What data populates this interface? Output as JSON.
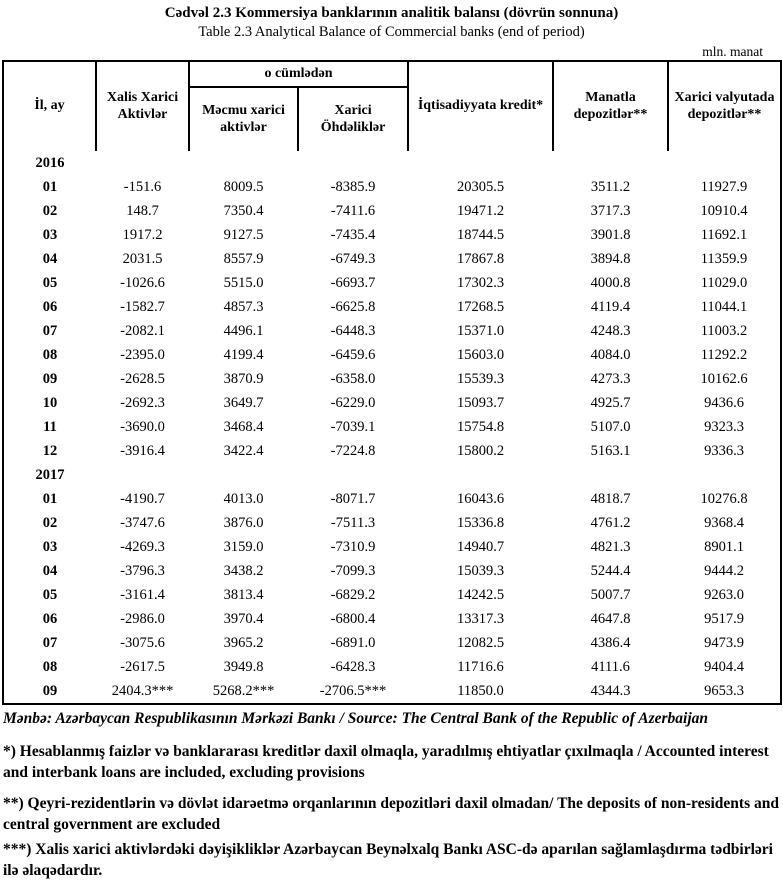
{
  "title_az": "Cədvəl  2.3  Kommersiya banklarının analitik balansı (dövrün sonnuna)",
  "title_en": "Table  2.3  Analytical Balance of Commercial banks (end of period)",
  "unit_label": "mln. manat",
  "table": {
    "headers": {
      "col_year_month": "İl, ay",
      "col_net_foreign_assets": "Xalis Xarici Aktivlər",
      "group_of_which": "o cümlədən",
      "col_gross_foreign_assets": "Məcmu xarici aktivlər",
      "col_foreign_liabilities": "Xarici Öhdəliklər",
      "col_credit_to_economy": "İqtisadiyyata kredit*",
      "col_manat_deposits": "Manatla depozitlər**",
      "col_fx_deposits": "Xarici valyutada depozitlər**"
    },
    "groups": [
      {
        "year": "2016",
        "rows": [
          [
            "01",
            "-151.6",
            "8009.5",
            "-8385.9",
            "20305.5",
            "3511.2",
            "11927.9"
          ],
          [
            "02",
            "148.7",
            "7350.4",
            "-7411.6",
            "19471.2",
            "3717.3",
            "10910.4"
          ],
          [
            "03",
            "1917.2",
            "9127.5",
            "-7435.4",
            "18744.5",
            "3901.8",
            "11692.1"
          ],
          [
            "04",
            "2031.5",
            "8557.9",
            "-6749.3",
            "17867.8",
            "3894.8",
            "11359.9"
          ],
          [
            "05",
            "-1026.6",
            "5515.0",
            "-6693.7",
            "17302.3",
            "4000.8",
            "11029.0"
          ],
          [
            "06",
            "-1582.7",
            "4857.3",
            "-6625.8",
            "17268.5",
            "4119.4",
            "11044.1"
          ],
          [
            "07",
            "-2082.1",
            "4496.1",
            "-6448.3",
            "15371.0",
            "4248.3",
            "11003.2"
          ],
          [
            "08",
            "-2395.0",
            "4199.4",
            "-6459.6",
            "15603.0",
            "4084.0",
            "11292.2"
          ],
          [
            "09",
            "-2628.5",
            "3870.9",
            "-6358.0",
            "15539.3",
            "4273.3",
            "10162.6"
          ],
          [
            "10",
            "-2692.3",
            "3649.7",
            "-6229.0",
            "15093.7",
            "4925.7",
            "9436.6"
          ],
          [
            "11",
            "-3690.0",
            "3468.4",
            "-7039.1",
            "15754.8",
            "5107.0",
            "9323.3"
          ],
          [
            "12",
            "-3916.4",
            "3422.4",
            "-7224.8",
            "15800.2",
            "5163.1",
            "9336.3"
          ]
        ]
      },
      {
        "year": "2017",
        "rows": [
          [
            "01",
            "-4190.7",
            "4013.0",
            "-8071.7",
            "16043.6",
            "4818.7",
            "10276.8"
          ],
          [
            "02",
            "-3747.6",
            "3876.0",
            "-7511.3",
            "15336.8",
            "4761.2",
            "9368.4"
          ],
          [
            "03",
            "-4269.3",
            "3159.0",
            "-7310.9",
            "14940.7",
            "4821.3",
            "8901.1"
          ],
          [
            "04",
            "-3796.3",
            "3438.2",
            "-7099.3",
            "15039.3",
            "5244.4",
            "9444.2"
          ],
          [
            "05",
            "-3161.4",
            "3813.4",
            "-6829.2",
            "14242.5",
            "5007.7",
            "9263.0"
          ],
          [
            "06",
            "-2986.0",
            "3970.4",
            "-6800.4",
            "13317.3",
            "4647.8",
            "9517.9"
          ],
          [
            "07",
            "-3075.6",
            "3965.2",
            "-6891.0",
            "12082.5",
            "4386.4",
            "9473.9"
          ],
          [
            "08",
            "-2617.5",
            "3949.8",
            "-6428.3",
            "11716.6",
            "4111.6",
            "9404.4"
          ],
          [
            "09",
            "2404.3***",
            "5268.2***",
            "-2706.5***",
            "11850.0",
            "4344.3",
            "9653.3"
          ]
        ]
      }
    ]
  },
  "footnotes": {
    "source": "Mənbə: Azərbaycan Respublikasının Mərkəzi Bankı / Source: The Central Bank of the Republic of Azerbaijan",
    "note1": "*) Hesablanmış faizlər və banklararası kreditlər daxil olmaqla, yaradılmış ehtiyatlar çıxılmaqla / Accounted interest and interbank loans are included, excluding provisions",
    "note2": "**) Qeyri-rezidentlərin və dövlət idarəetmə orqanlarının depozitləri  daxil olmadan/ The deposits of non-residents and central government are excluded",
    "note3": "***) Xalis xarici aktivlərdəki dəyişikliklər Azərbaycan Beynəlxalq Bankı ASC-də aparılan sağlamlaşdırma tədbirləri ilə əlaqədardır."
  }
}
